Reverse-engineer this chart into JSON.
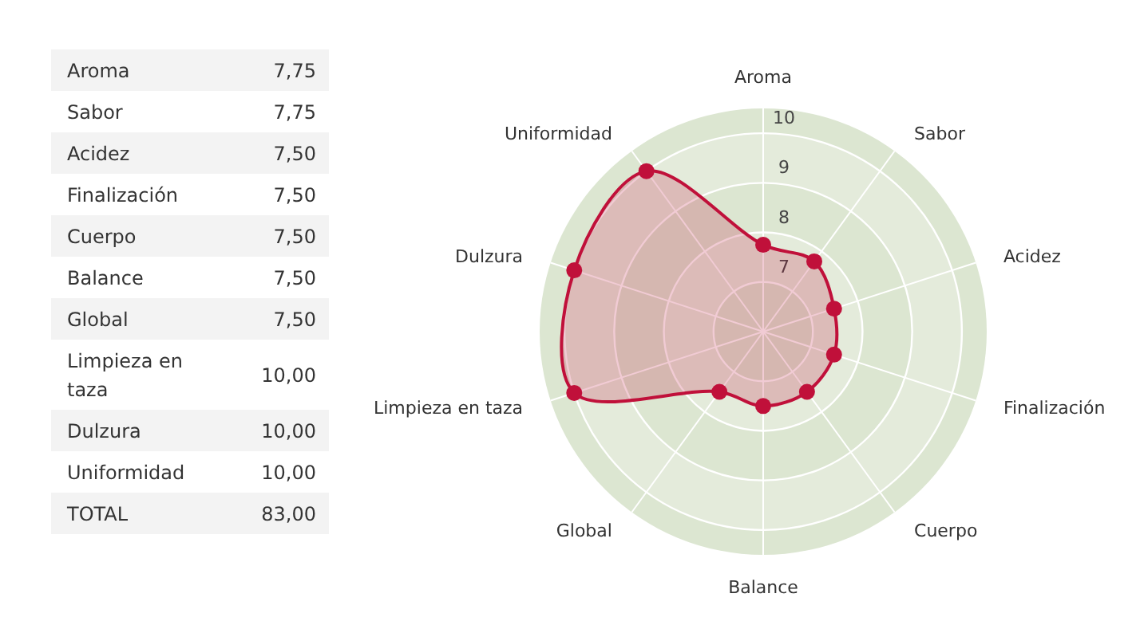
{
  "chart_data": [
    {
      "type": "other",
      "annotations": [
        "Aroma",
        "7,75",
        "Sabor",
        "7,75",
        "Acidez",
        "7,50",
        "Finalización",
        "7,50",
        "Cuerpo",
        "7,50",
        "Balance",
        "7,50",
        "Global",
        "7,50",
        "Limpieza en taza",
        "10,00",
        "Dulzura",
        "10,00",
        "Uniformidad",
        "10,00",
        "TOTAL",
        "83,00"
      ]
    },
    {
      "type": "radar",
      "categories": [
        "Aroma",
        "Sabor",
        "Acidez",
        "Finalización",
        "Cuerpo",
        "Balance",
        "Global",
        "Limpieza en taza",
        "Dulzura",
        "Uniformidad"
      ],
      "series": [
        {
          "color": "#c0103a",
          "values": [
            7.75,
            7.75,
            7.5,
            7.5,
            7.5,
            7.5,
            7.5,
            10,
            10,
            10
          ]
        }
      ],
      "ylim": [
        6,
        10.5
      ],
      "yticks": [
        7,
        8,
        9,
        10
      ],
      "grid": true,
      "marker": "circle",
      "line_style": "solid"
    }
  ]
}
